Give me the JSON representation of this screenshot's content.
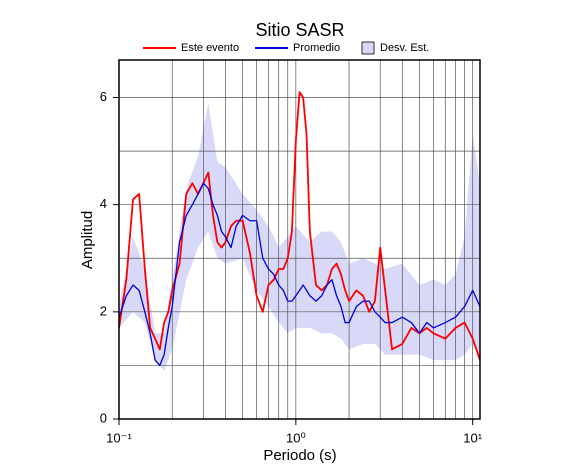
{
  "chart_data": {
    "type": "line",
    "title": "Sitio SASR",
    "x_label": "Periodo (s)",
    "y_label": "Amplitud",
    "xscale": "log",
    "xlim": [
      0.1,
      11
    ],
    "ylim": [
      0,
      6.7
    ],
    "xticks": [
      {
        "value": 0.1,
        "label": "10⁻¹"
      },
      {
        "value": 1,
        "label": "10⁰"
      },
      {
        "value": 10,
        "label": "10¹"
      }
    ],
    "xminor": [
      0.2,
      0.3,
      0.4,
      0.5,
      0.6,
      0.7,
      0.8,
      0.9,
      2,
      3,
      4,
      5,
      6,
      7,
      8,
      9
    ],
    "yticks": [
      0,
      2,
      4,
      6
    ],
    "yminor": [
      1,
      3,
      5
    ],
    "grid": true,
    "legend": "top",
    "x": [
      0.1,
      0.11,
      0.12,
      0.13,
      0.14,
      0.15,
      0.16,
      0.17,
      0.18,
      0.19,
      0.2,
      0.22,
      0.24,
      0.26,
      0.28,
      0.3,
      0.32,
      0.34,
      0.36,
      0.38,
      0.4,
      0.43,
      0.46,
      0.5,
      0.55,
      0.6,
      0.65,
      0.7,
      0.75,
      0.8,
      0.85,
      0.9,
      0.95,
      1.0,
      1.05,
      1.1,
      1.15,
      1.2,
      1.3,
      1.4,
      1.5,
      1.6,
      1.7,
      1.8,
      1.9,
      2.0,
      2.2,
      2.4,
      2.6,
      2.8,
      3.0,
      3.2,
      3.5,
      4,
      4.5,
      5,
      5.5,
      6,
      7,
      8,
      9,
      10,
      11
    ],
    "series": [
      {
        "name": "Este evento",
        "color": "#ff0000",
        "values": [
          1.7,
          2.6,
          4.1,
          4.2,
          2.8,
          1.7,
          1.5,
          1.3,
          1.8,
          2.0,
          2.4,
          2.9,
          4.2,
          4.4,
          4.2,
          4.4,
          4.6,
          3.8,
          3.3,
          3.2,
          3.3,
          3.6,
          3.7,
          3.7,
          3.1,
          2.3,
          2.0,
          2.5,
          2.6,
          2.8,
          2.8,
          3.0,
          3.5,
          5.2,
          6.1,
          6.0,
          5.3,
          3.5,
          2.5,
          2.4,
          2.5,
          2.8,
          2.9,
          2.7,
          2.4,
          2.2,
          2.4,
          2.3,
          2.0,
          2.2,
          3.2,
          2.4,
          1.3,
          1.4,
          1.7,
          1.6,
          1.7,
          1.6,
          1.5,
          1.7,
          1.8,
          1.5,
          1.1
        ]
      },
      {
        "name": "Promedio",
        "color": "#0000dd",
        "values": [
          1.9,
          2.3,
          2.5,
          2.4,
          2.0,
          1.6,
          1.1,
          1.0,
          1.2,
          1.7,
          2.1,
          3.3,
          3.8,
          4.0,
          4.2,
          4.4,
          4.3,
          4.0,
          3.8,
          3.5,
          3.4,
          3.2,
          3.6,
          3.8,
          3.7,
          3.7,
          3.0,
          2.8,
          2.7,
          2.5,
          2.4,
          2.2,
          2.2,
          2.3,
          2.4,
          2.5,
          2.4,
          2.3,
          2.2,
          2.3,
          2.5,
          2.6,
          2.3,
          2.1,
          1.8,
          1.8,
          2.1,
          2.2,
          2.2,
          2.0,
          1.9,
          1.8,
          1.8,
          1.9,
          1.8,
          1.6,
          1.8,
          1.7,
          1.8,
          1.9,
          2.1,
          2.4,
          2.1
        ]
      }
    ],
    "band": {
      "name": "Desv. Est.",
      "color": "#d8d8f8",
      "x": [
        0.1,
        0.12,
        0.14,
        0.16,
        0.18,
        0.2,
        0.24,
        0.28,
        0.32,
        0.36,
        0.4,
        0.5,
        0.6,
        0.7,
        0.8,
        0.9,
        1.0,
        1.2,
        1.4,
        1.6,
        1.8,
        2.0,
        2.4,
        2.8,
        3.2,
        4,
        5,
        6,
        7,
        8,
        9,
        10,
        11
      ],
      "lower": [
        1.7,
        2.0,
        1.8,
        1.1,
        0.9,
        1.3,
        2.6,
        3.2,
        3.5,
        3.0,
        2.9,
        3.0,
        2.4,
        2.1,
        1.8,
        1.6,
        1.7,
        1.7,
        1.6,
        1.6,
        1.5,
        1.3,
        1.4,
        1.4,
        1.2,
        1.2,
        1.2,
        1.1,
        1.1,
        1.1,
        1.2,
        1.4,
        1.2
      ],
      "upper": [
        2.1,
        3.4,
        2.8,
        1.6,
        1.6,
        2.6,
        4.3,
        4.9,
        5.9,
        4.8,
        4.7,
        4.2,
        3.9,
        3.6,
        3.2,
        3.4,
        3.6,
        3.3,
        3.5,
        3.5,
        3.3,
        2.9,
        3.0,
        2.9,
        2.8,
        2.9,
        2.5,
        2.6,
        2.5,
        2.7,
        3.4,
        5.3,
        4.4
      ]
    }
  }
}
